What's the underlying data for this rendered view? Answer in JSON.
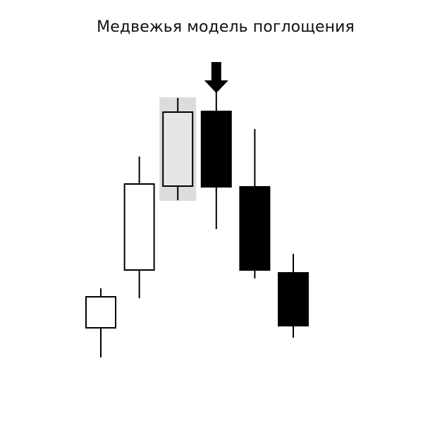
{
  "title": "Медвежья модель поглощения",
  "colors": {
    "background": "#ffffff",
    "bull_fill": "#ffffff",
    "bear_fill": "#000000",
    "outline": "#000000",
    "highlight_bg": "#dcdcdc",
    "highlight_candle_fill": "#e6e6e6",
    "arrow": "#000000"
  },
  "arrow_icon": "down-arrow-icon",
  "candles": [
    {
      "direction": "up",
      "open": 94,
      "close": 138,
      "high": 150,
      "low": 52,
      "highlighted": false
    },
    {
      "direction": "up",
      "open": 176,
      "close": 298,
      "high": 337,
      "low": 136,
      "highlighted": false
    },
    {
      "direction": "up",
      "open": 295,
      "close": 400,
      "high": 420,
      "low": 275,
      "highlighted": true
    },
    {
      "direction": "down",
      "open": 401,
      "close": 294,
      "high": 461,
      "low": 234,
      "highlighted": false
    },
    {
      "direction": "down",
      "open": 294,
      "close": 176,
      "high": 376,
      "low": 164,
      "highlighted": false
    },
    {
      "direction": "down",
      "open": 172,
      "close": 97,
      "high": 199,
      "low": 80,
      "highlighted": false
    }
  ],
  "arrow_over_candle": 3
}
